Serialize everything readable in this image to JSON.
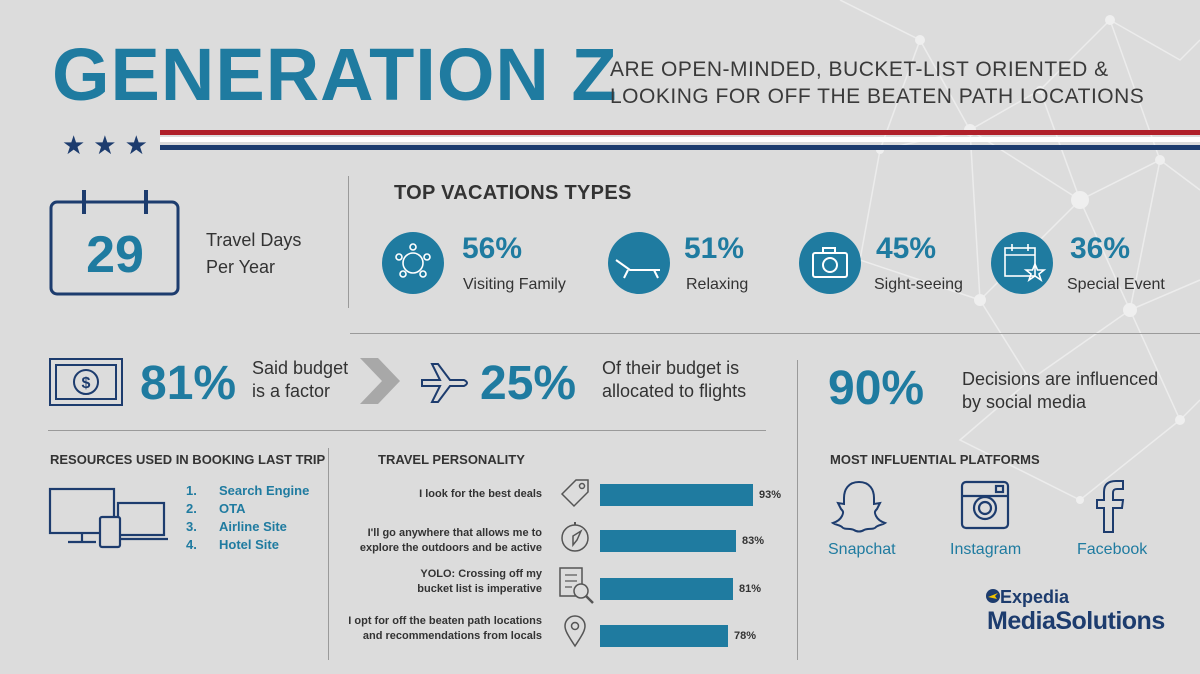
{
  "header": {
    "title": "GENERATION Z",
    "subtitle": "ARE OPEN-MINDED, BUCKET-LIST ORIENTED &\nLOOKING FOR OFF THE BEATEN PATH LOCATIONS",
    "stars": "★★★"
  },
  "colors": {
    "accent": "#1f7ba0",
    "navy": "#1d3c6e",
    "red": "#b0202a",
    "background": "#dcdcdc"
  },
  "travel_days": {
    "value": "29",
    "label": "Travel Days\nPer Year",
    "icon": "calendar-icon"
  },
  "top_vacations": {
    "title": "TOP VACATIONS TYPES",
    "items": [
      {
        "pct": "56%",
        "label": "Visiting Family",
        "icon": "family-icon"
      },
      {
        "pct": "51%",
        "label": "Relaxing",
        "icon": "lounge-chair-icon"
      },
      {
        "pct": "45%",
        "label": "Sight-seeing",
        "icon": "camera-icon"
      },
      {
        "pct": "36%",
        "label": "Special Event",
        "icon": "calendar-star-icon"
      }
    ]
  },
  "budget": {
    "pct": "81%",
    "text": "Said budget\nis a factor",
    "icon": "money-icon",
    "arrow_icon": "chevron-right-icon"
  },
  "flights": {
    "pct": "25%",
    "text": "Of their budget is\nallocated to flights",
    "icon": "airplane-icon"
  },
  "social": {
    "pct": "90%",
    "text": "Decisions are influenced\nby social media"
  },
  "resources": {
    "title": "RESOURCES USED IN BOOKING LAST TRIP",
    "icon": "devices-icon",
    "items": [
      {
        "num": "1.",
        "label": "Search Engine"
      },
      {
        "num": "2.",
        "label": "OTA"
      },
      {
        "num": "3.",
        "label": "Airline Site"
      },
      {
        "num": "4.",
        "label": "Hotel Site"
      }
    ]
  },
  "personality": {
    "title": "TRAVEL PERSONALITY",
    "items": [
      {
        "text": "I look for the best deals",
        "value": 93,
        "pct": "93%",
        "icon": "price-tag-icon"
      },
      {
        "text": "I'll go anywhere that allows me to\nexplore the outdoors and be active",
        "value": 83,
        "pct": "83%",
        "icon": "compass-icon"
      },
      {
        "text": "YOLO: Crossing off my\nbucket list is imperative",
        "value": 81,
        "pct": "81%",
        "icon": "checklist-search-icon"
      },
      {
        "text": "I opt for off the beaten path locations\nand recommendations from locals",
        "value": 78,
        "pct": "78%",
        "icon": "location-pin-icon"
      }
    ]
  },
  "platforms": {
    "title": "MOST INFLUENTIAL PLATFORMS",
    "items": [
      {
        "label": "Snapchat",
        "icon": "snapchat-icon"
      },
      {
        "label": "Instagram",
        "icon": "instagram-icon"
      },
      {
        "label": "Facebook",
        "icon": "facebook-icon"
      }
    ]
  },
  "brand": {
    "line1": "Expedia",
    "line2": "MediaSolutions",
    "icon": "expedia-globe-icon"
  }
}
